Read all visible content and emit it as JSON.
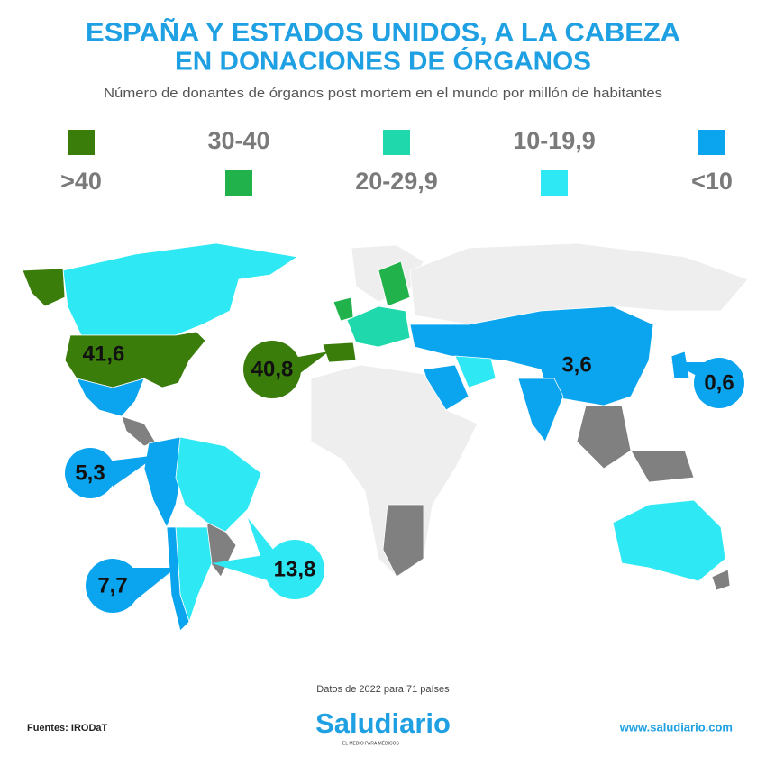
{
  "header": {
    "title_lines": [
      "ESPAÑA Y ESTADOS UNIDOS, A LA CABEZA",
      "EN DONACIONES DE ÓRGANOS"
    ],
    "subtitle": "Número de donantes de órganos post mortem en el mundo por millón de habitantes"
  },
  "legend": [
    {
      "label": ">40",
      "color": "#3b7d0b"
    },
    {
      "label": "30-40",
      "color": "#22b24c"
    },
    {
      "label": "20-29,9",
      "color": "#1fd9ac"
    },
    {
      "label": "10-19,9",
      "color": "#2ee8f4"
    },
    {
      "label": "<10",
      "color": "#0ba4ee"
    }
  ],
  "callouts": [
    {
      "label": "41,6",
      "color": "#3b7d0b"
    },
    {
      "label": "40,8",
      "color": "#3b7d0b"
    },
    {
      "label": "3,6",
      "color": "#0ba4ee"
    },
    {
      "label": "0,6",
      "color": "#0ba4ee"
    },
    {
      "label": "5,3",
      "color": "#0ba4ee"
    },
    {
      "label": "7,7",
      "color": "#0ba4ee"
    },
    {
      "label": "13,8",
      "color": "#2ee8f4"
    }
  ],
  "footer": {
    "note": "Datos de 2022 para 71 países",
    "sources": "Fuentes: IRODaT",
    "brand": "Saludiario",
    "tagline": "EL MEDIO PARA MÉDICOS",
    "url": "www.saludiario.com"
  }
}
